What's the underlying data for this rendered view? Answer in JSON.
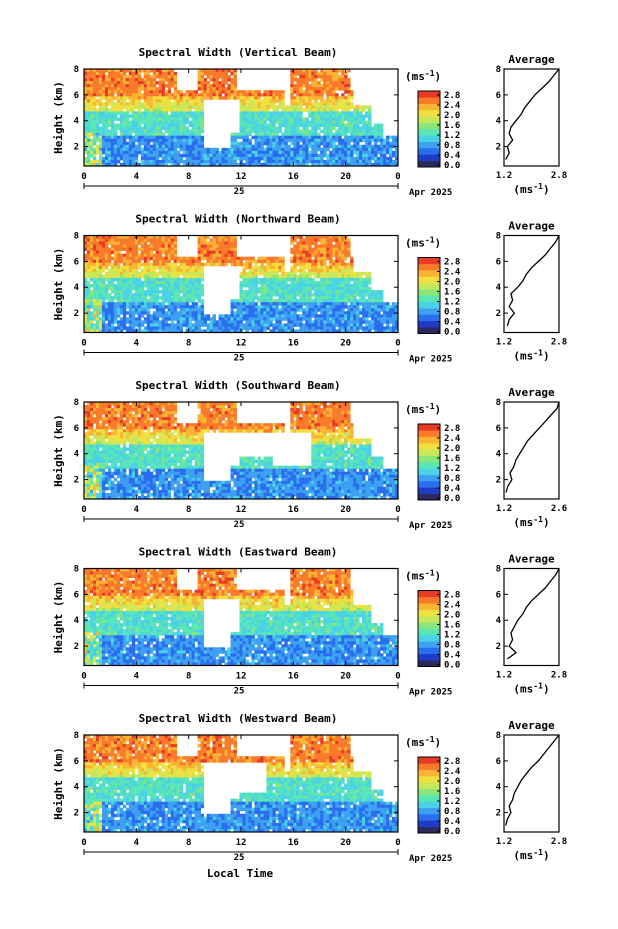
{
  "figure": {
    "xlabel": "Local Time",
    "date_label": "Apr 2025",
    "day_label": "25",
    "ylabel": "Height (km)",
    "colorbar_unit": "(ms",
    "colorbar_unit_exp": "-1",
    "colorbar_unit_close": ")",
    "avg_title": "Average",
    "avg_unit": "(ms",
    "avg_unit_exp": "-1",
    "avg_unit_close": ")",
    "colorbar_ticks": [
      "2.8",
      "2.4",
      "2.0",
      "1.6",
      "1.2",
      "0.8",
      "0.4",
      "0.0"
    ],
    "colormap": [
      "#2a2a5e",
      "#1e3cc8",
      "#2a6ef0",
      "#3ea0f0",
      "#4ad2e6",
      "#5ae6b4",
      "#8ae67a",
      "#c6e85a",
      "#f0e040",
      "#f8b432",
      "#f87a2a",
      "#e83a24"
    ]
  },
  "chart_data": [
    {
      "type": "heatmap",
      "title": "Spectral Width (Vertical Beam)",
      "x_ticks": [
        "0",
        "4",
        "8",
        "12",
        "16",
        "20",
        "0"
      ],
      "y_ticks": [
        "8",
        "6",
        "4",
        "2"
      ],
      "xlim": [
        0,
        24
      ],
      "ylim": [
        0.5,
        8
      ],
      "avg": {
        "x_ticks": [
          "1.2",
          "2.8"
        ],
        "xlim": [
          1.2,
          2.8
        ],
        "y_ticks": [
          "8",
          "6",
          "4",
          "2"
        ],
        "heights": [
          1.0,
          1.5,
          2.0,
          2.5,
          3.0,
          3.5,
          4.0,
          4.5,
          5.0,
          5.5,
          6.0,
          6.5,
          7.0,
          7.5,
          8.0
        ],
        "values": [
          1.25,
          1.35,
          1.3,
          1.45,
          1.35,
          1.4,
          1.55,
          1.7,
          1.8,
          1.95,
          2.1,
          2.3,
          2.5,
          2.65,
          2.8
        ]
      }
    },
    {
      "type": "heatmap",
      "title": "Spectral Width (Northward Beam)",
      "x_ticks": [
        "0",
        "4",
        "8",
        "12",
        "16",
        "20",
        "0"
      ],
      "y_ticks": [
        "8",
        "6",
        "4",
        "2"
      ],
      "xlim": [
        0,
        24
      ],
      "ylim": [
        0.5,
        8
      ],
      "avg": {
        "x_ticks": [
          "1.2",
          "2.8"
        ],
        "xlim": [
          1.2,
          2.8
        ],
        "y_ticks": [
          "8",
          "6",
          "4",
          "2"
        ],
        "heights": [
          1.0,
          1.5,
          2.0,
          2.5,
          3.0,
          3.5,
          4.0,
          4.5,
          5.0,
          5.5,
          6.0,
          6.5,
          7.0,
          7.5,
          8.0
        ],
        "values": [
          1.3,
          1.35,
          1.5,
          1.35,
          1.45,
          1.4,
          1.6,
          1.75,
          1.85,
          2.0,
          2.2,
          2.4,
          2.55,
          2.7,
          2.8
        ]
      }
    },
    {
      "type": "heatmap",
      "title": "Spectral Width (Southward Beam)",
      "x_ticks": [
        "0",
        "4",
        "8",
        "12",
        "16",
        "20",
        "0"
      ],
      "y_ticks": [
        "8",
        "6",
        "4",
        "2"
      ],
      "xlim": [
        0,
        24
      ],
      "ylim": [
        0.5,
        8
      ],
      "avg": {
        "x_ticks": [
          "1.2",
          "2.6"
        ],
        "xlim": [
          1.2,
          2.6
        ],
        "y_ticks": [
          "8",
          "6",
          "4",
          "2"
        ],
        "heights": [
          1.0,
          1.5,
          2.0,
          2.5,
          3.0,
          3.5,
          4.0,
          4.5,
          5.0,
          5.5,
          6.0,
          6.5,
          7.0,
          7.5,
          8.0
        ],
        "values": [
          1.25,
          1.3,
          1.4,
          1.35,
          1.45,
          1.5,
          1.6,
          1.7,
          1.8,
          1.95,
          2.1,
          2.25,
          2.4,
          2.55,
          2.6
        ]
      }
    },
    {
      "type": "heatmap",
      "title": "Spectral Width (Eastward Beam)",
      "x_ticks": [
        "0",
        "4",
        "8",
        "12",
        "16",
        "20",
        "0"
      ],
      "y_ticks": [
        "8",
        "6",
        "4",
        "2"
      ],
      "xlim": [
        0,
        24
      ],
      "ylim": [
        0.5,
        8
      ],
      "avg": {
        "x_ticks": [
          "1.2",
          "2.8"
        ],
        "xlim": [
          1.2,
          2.8
        ],
        "y_ticks": [
          "8",
          "6",
          "4",
          "2"
        ],
        "heights": [
          1.0,
          1.5,
          2.0,
          2.5,
          3.0,
          3.5,
          4.0,
          4.5,
          5.0,
          5.5,
          6.0,
          6.5,
          7.0,
          7.5,
          8.0
        ],
        "values": [
          1.3,
          1.55,
          1.35,
          1.45,
          1.4,
          1.5,
          1.6,
          1.75,
          1.85,
          2.0,
          2.2,
          2.4,
          2.55,
          2.7,
          2.8
        ]
      }
    },
    {
      "type": "heatmap",
      "title": "Spectral Width (Westward Beam)",
      "x_ticks": [
        "0",
        "4",
        "8",
        "12",
        "16",
        "20",
        "0"
      ],
      "y_ticks": [
        "8",
        "6",
        "4",
        "2"
      ],
      "xlim": [
        0,
        24
      ],
      "ylim": [
        0.5,
        8
      ],
      "avg": {
        "x_ticks": [
          "1.2",
          "2.8"
        ],
        "xlim": [
          1.2,
          2.8
        ],
        "y_ticks": [
          "8",
          "6",
          "4",
          "2"
        ],
        "heights": [
          1.0,
          1.5,
          2.0,
          2.5,
          3.0,
          3.5,
          4.0,
          4.5,
          5.0,
          5.5,
          6.0,
          6.5,
          7.0,
          7.5,
          8.0
        ],
        "values": [
          1.25,
          1.3,
          1.4,
          1.35,
          1.45,
          1.5,
          1.6,
          1.7,
          1.85,
          2.0,
          2.2,
          2.35,
          2.5,
          2.65,
          2.8
        ]
      }
    }
  ]
}
